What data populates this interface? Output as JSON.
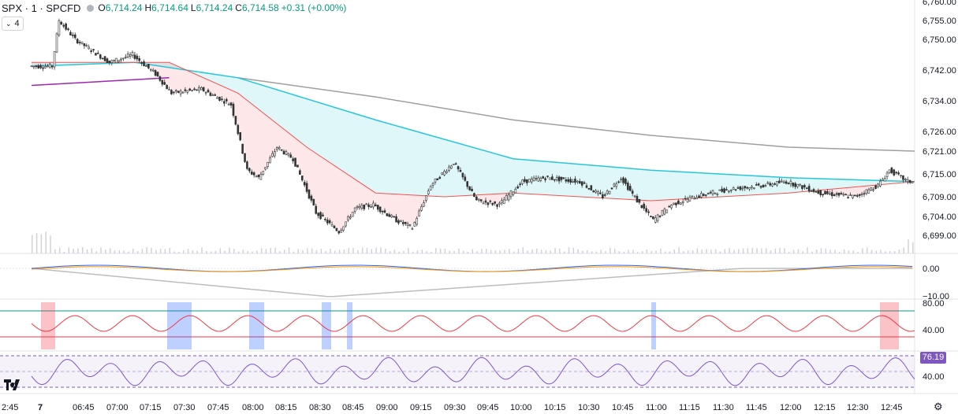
{
  "header": {
    "symbol": "SPX · 1 · SPCFD",
    "open_key": "O",
    "open_val": "6,714.24",
    "high_key": "H",
    "high_val": "6,714.64",
    "low_key": "L",
    "low_val": "6,714.24",
    "close_key": "C",
    "close_val": "6,714.58",
    "change": "+0.31 (+0.00%)",
    "collapse_count": "4"
  },
  "colors": {
    "up": "#089981",
    "down": "#f23645",
    "candle": "#333333",
    "teal": "#26c6da",
    "gray_ma": "#9e9e9e",
    "purple": "#9c27b0",
    "green_ma": "#4caf50",
    "red_ma": "#ef5350",
    "blue_ma": "#5b8def",
    "rsi": "#7e57c2"
  },
  "price_axis": [
    "6,760.00",
    "6,755.00",
    "6,750.00",
    "6,742.00",
    "6,734.00",
    "6,726.00",
    "6,721.00",
    "6,715.00",
    "6,709.00",
    "6,704.00",
    "6,699.00"
  ],
  "macd_axis": [
    "0.00",
    "−10.00"
  ],
  "osc_axis": [
    "80.00",
    "40.00"
  ],
  "rsi_axis": [
    "40.00"
  ],
  "rsi_value": "76.19",
  "time_axis": [
    "2:45",
    "7",
    "06:45",
    "07:00",
    "07:15",
    "07:30",
    "07:45",
    "08:00",
    "08:15",
    "08:30",
    "08:45",
    "09:00",
    "09:15",
    "09:30",
    "09:45",
    "10:00",
    "10:15",
    "10:30",
    "10:45",
    "11:00",
    "11:15",
    "11:30",
    "11:45",
    "12:00",
    "12:15",
    "12:30",
    "12:45"
  ],
  "chart_data": {
    "type": "candlestick",
    "symbol": "SPX",
    "interval": "1",
    "x_range": [
      "06:30",
      "12:55"
    ],
    "ylim": [
      6699,
      6760
    ],
    "price_path": [
      [
        "06:30",
        6743
      ],
      [
        "06:40",
        6743
      ],
      [
        "06:43",
        6755
      ],
      [
        "06:50",
        6750
      ],
      [
        "06:55",
        6748
      ],
      [
        "07:05",
        6744
      ],
      [
        "07:15",
        6746
      ],
      [
        "07:25",
        6741
      ],
      [
        "07:32",
        6736
      ],
      [
        "07:45",
        6737
      ],
      [
        "07:58",
        6733
      ],
      [
        "08:05",
        6716
      ],
      [
        "08:10",
        6714
      ],
      [
        "08:18",
        6722
      ],
      [
        "08:25",
        6719
      ],
      [
        "08:35",
        6705
      ],
      [
        "08:45",
        6700
      ],
      [
        "08:52",
        6706
      ],
      [
        "09:00",
        6707
      ],
      [
        "09:10",
        6703
      ],
      [
        "09:17",
        6701
      ],
      [
        "09:25",
        6712
      ],
      [
        "09:35",
        6718
      ],
      [
        "09:45",
        6708
      ],
      [
        "09:55",
        6707
      ],
      [
        "10:05",
        6713
      ],
      [
        "10:15",
        6714
      ],
      [
        "10:30",
        6713
      ],
      [
        "10:40",
        6709
      ],
      [
        "10:48",
        6714
      ],
      [
        "10:55",
        6708
      ],
      [
        "11:02",
        6703
      ],
      [
        "11:10",
        6707
      ],
      [
        "11:20",
        6709
      ],
      [
        "11:35",
        6711
      ],
      [
        "11:50",
        6712
      ],
      [
        "12:00",
        6713
      ],
      [
        "12:15",
        6710
      ],
      [
        "12:30",
        6709
      ],
      [
        "12:40",
        6712
      ],
      [
        "12:45",
        6716
      ],
      [
        "12:53",
        6713
      ]
    ],
    "moving_averages": {
      "teal": [
        [
          "06:30",
          6743
        ],
        [
          "07:15",
          6744
        ],
        [
          "08:00",
          6740
        ],
        [
          "09:00",
          6729
        ],
        [
          "10:00",
          6719
        ],
        [
          "11:00",
          6716
        ],
        [
          "12:00",
          6714
        ],
        [
          "12:55",
          6713
        ]
      ],
      "gray": [
        [
          "08:00",
          6740
        ],
        [
          "09:00",
          6735
        ],
        [
          "10:00",
          6729
        ],
        [
          "11:00",
          6725
        ],
        [
          "12:00",
          6722
        ],
        [
          "12:55",
          6721
        ]
      ],
      "purple": [
        [
          "06:30",
          6738
        ],
        [
          "07:30",
          6740
        ]
      ],
      "red": [
        [
          "06:30",
          6744
        ],
        [
          "07:30",
          6744
        ],
        [
          "08:00",
          6736
        ],
        [
          "08:30",
          6722
        ],
        [
          "09:00",
          6710
        ],
        [
          "09:30",
          6709
        ],
        [
          "10:00",
          6710
        ],
        [
          "11:00",
          6708
        ],
        [
          "12:00",
          6710
        ],
        [
          "12:55",
          6713
        ]
      ]
    },
    "macd": {
      "ylim": [
        -12,
        4
      ]
    },
    "oscillator": {
      "ylim": [
        0,
        100
      ],
      "upper": 80,
      "lower": 40
    },
    "rsi": {
      "ylim": [
        20,
        80
      ],
      "last": 76.19
    }
  }
}
